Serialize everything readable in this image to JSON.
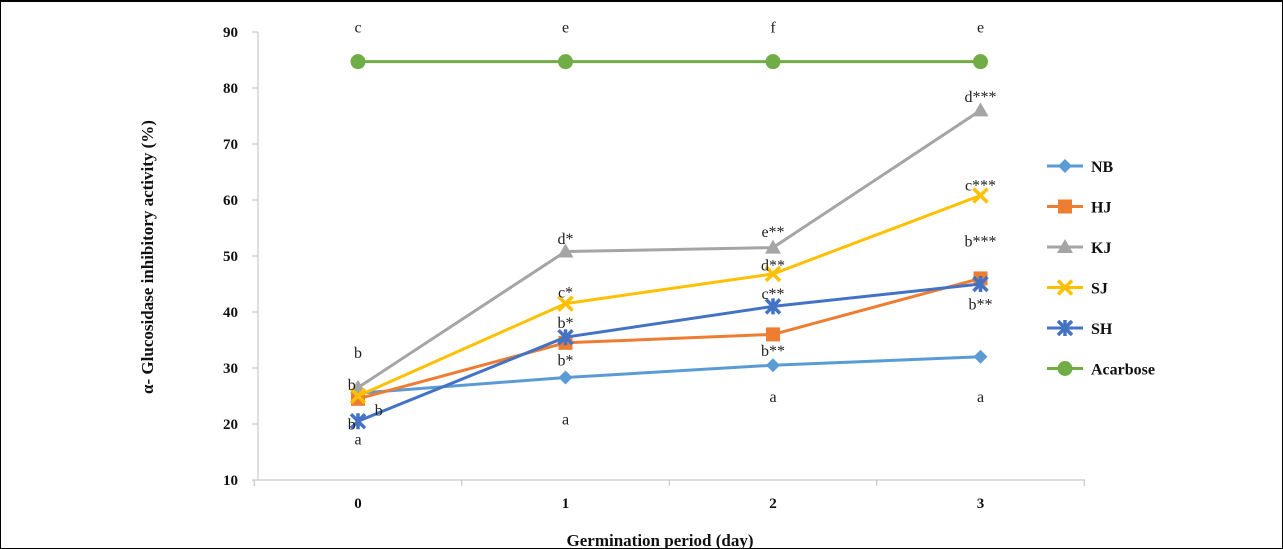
{
  "chart_data": {
    "type": "line",
    "title": "",
    "xlabel": "Germination period (day)",
    "ylabel": "α- Glucosidase inhibitory activity (%)",
    "x": [
      0,
      1,
      2,
      3
    ],
    "x_tick_labels": [
      "0",
      "1",
      "2",
      "3"
    ],
    "ylim": [
      10,
      90
    ],
    "y_ticks": [
      10,
      20,
      30,
      40,
      50,
      60,
      70,
      80,
      90
    ],
    "grid": false,
    "legend_position": "right",
    "series": [
      {
        "name": "NB",
        "color": "#5B9BD5",
        "marker": "diamond",
        "values": [
          25.5,
          28.3,
          30.5,
          32.0
        ]
      },
      {
        "name": "HJ",
        "color": "#ED7D31",
        "marker": "square",
        "values": [
          24.5,
          34.5,
          36.0,
          46.0
        ]
      },
      {
        "name": "KJ",
        "color": "#A5A5A5",
        "marker": "triangle",
        "values": [
          26.5,
          50.8,
          51.5,
          76.0
        ]
      },
      {
        "name": "SJ",
        "color": "#FFC000",
        "marker": "x",
        "values": [
          25.0,
          41.5,
          46.8,
          60.8
        ]
      },
      {
        "name": "SH",
        "color": "#4472C4",
        "marker": "star",
        "values": [
          20.5,
          35.5,
          41.0,
          45.0
        ]
      },
      {
        "name": "Acarbose",
        "color": "#70AD47",
        "marker": "circle",
        "values": [
          84.7,
          84.7,
          84.7,
          84.7
        ]
      }
    ],
    "annotations": [
      {
        "x": 0,
        "y": 90.8,
        "text": "c"
      },
      {
        "x": 1,
        "y": 90.8,
        "text": "e"
      },
      {
        "x": 2,
        "y": 90.8,
        "text": "f"
      },
      {
        "x": 3,
        "y": 90.8,
        "text": "e"
      },
      {
        "x": 3,
        "y": 78.4,
        "text": "d***"
      },
      {
        "x": 3,
        "y": 62.6,
        "text": "c***"
      },
      {
        "x": 3,
        "y": 52.6,
        "text": "b***"
      },
      {
        "x": 3,
        "y": 41.3,
        "text": "b**"
      },
      {
        "x": 3,
        "y": 24.8,
        "text": "a"
      },
      {
        "x": 1,
        "y": 53.0,
        "text": "d*"
      },
      {
        "x": 1,
        "y": 43.5,
        "text": "c*"
      },
      {
        "x": 1,
        "y": 38.0,
        "text": "b*"
      },
      {
        "x": 1,
        "y": 31.3,
        "text": "b*"
      },
      {
        "x": 1,
        "y": 20.8,
        "text": "a"
      },
      {
        "x": 2,
        "y": 54.3,
        "text": "e**"
      },
      {
        "x": 2,
        "y": 48.3,
        "text": "d**"
      },
      {
        "x": 2,
        "y": 43.2,
        "text": "c**"
      },
      {
        "x": 2,
        "y": 33.0,
        "text": "b**"
      },
      {
        "x": 2,
        "y": 24.8,
        "text": "a"
      },
      {
        "x": 0,
        "y": 32.7,
        "text": "b"
      },
      {
        "x": -0.03,
        "y": 27.0,
        "text": "b"
      },
      {
        "x": 0.1,
        "y": 22.4,
        "text": "b"
      },
      {
        "x": -0.03,
        "y": 19.9,
        "text": "b"
      },
      {
        "x": 0,
        "y": 17.2,
        "text": "a"
      }
    ]
  }
}
